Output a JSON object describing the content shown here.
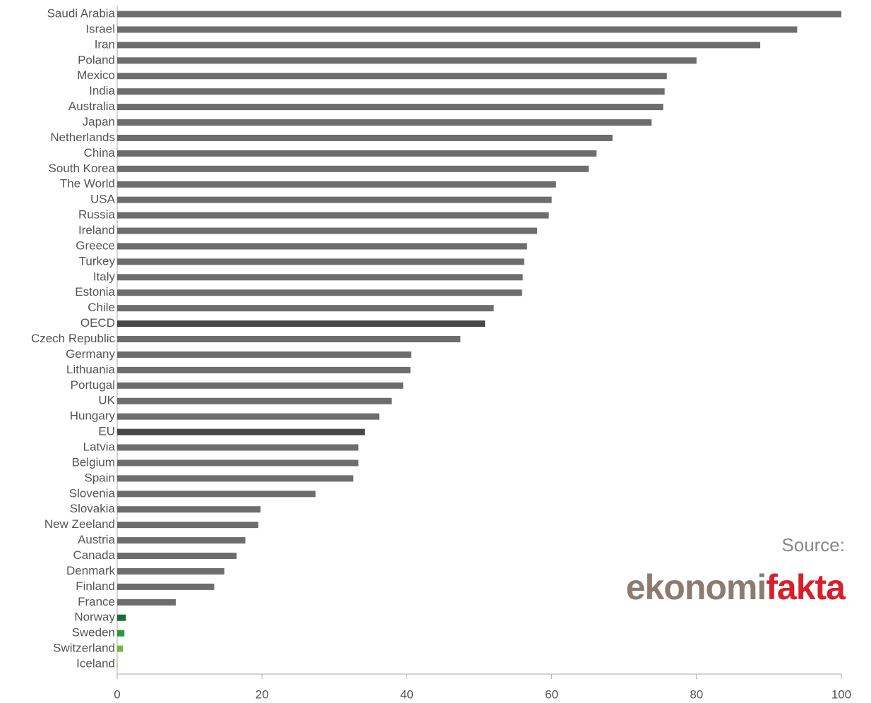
{
  "chart_data": {
    "type": "hbar",
    "categories": [
      "Saudi Arabia",
      "Israel",
      "Iran",
      "Poland",
      "Mexico",
      "India",
      "Australia",
      "Japan",
      "Netherlands",
      "China",
      "South Korea",
      "The World",
      "USA",
      "Russia",
      "Ireland",
      "Greece",
      "Turkey",
      "Italy",
      "Estonia",
      "Chile",
      "OECD",
      "Czech Republic",
      "Germany",
      "Lithuania",
      "Portugal",
      "UK",
      "Hungary",
      "EU",
      "Latvia",
      "Belgium",
      "Spain",
      "Slovenia",
      "Slovakia",
      "New Zeeland",
      "Austria",
      "Canada",
      "Denmark",
      "Finland",
      "France",
      "Norway",
      "Sweden",
      "Switzerland",
      "Iceland"
    ],
    "values": [
      100,
      93.9,
      88.8,
      80.0,
      75.9,
      75.6,
      75.4,
      73.8,
      68.4,
      66.2,
      65.1,
      60.6,
      60.0,
      59.6,
      58.0,
      56.6,
      56.2,
      56.0,
      55.9,
      52.0,
      50.8,
      47.4,
      40.6,
      40.5,
      39.5,
      37.9,
      36.2,
      34.2,
      33.3,
      33.3,
      32.6,
      27.4,
      19.8,
      19.5,
      17.7,
      16.5,
      14.8,
      13.4,
      8.1,
      1.2,
      1.0,
      0.8,
      0.1
    ],
    "colors": [
      "#6d6d6d",
      "#6d6d6d",
      "#6d6d6d",
      "#6d6d6d",
      "#6d6d6d",
      "#6d6d6d",
      "#6d6d6d",
      "#6d6d6d",
      "#6d6d6d",
      "#6d6d6d",
      "#6d6d6d",
      "#6d6d6d",
      "#6d6d6d",
      "#6d6d6d",
      "#6d6d6d",
      "#6d6d6d",
      "#6d6d6d",
      "#6d6d6d",
      "#6d6d6d",
      "#6d6d6d",
      "#484848",
      "#6d6d6d",
      "#6d6d6d",
      "#6d6d6d",
      "#6d6d6d",
      "#6d6d6d",
      "#6d6d6d",
      "#484848",
      "#6d6d6d",
      "#6d6d6d",
      "#6d6d6d",
      "#6d6d6d",
      "#6d6d6d",
      "#6d6d6d",
      "#6d6d6d",
      "#6d6d6d",
      "#6d6d6d",
      "#6d6d6d",
      "#6d6d6d",
      "#1a6b35",
      "#2a9a40",
      "#7ab63a",
      "#b5d98a"
    ],
    "xlim": [
      0,
      100
    ],
    "xticks": [
      0,
      20,
      40,
      60,
      80,
      100
    ],
    "source_label": "Source:",
    "logo": {
      "part1": "ekonomi",
      "part2": "fakta"
    }
  }
}
